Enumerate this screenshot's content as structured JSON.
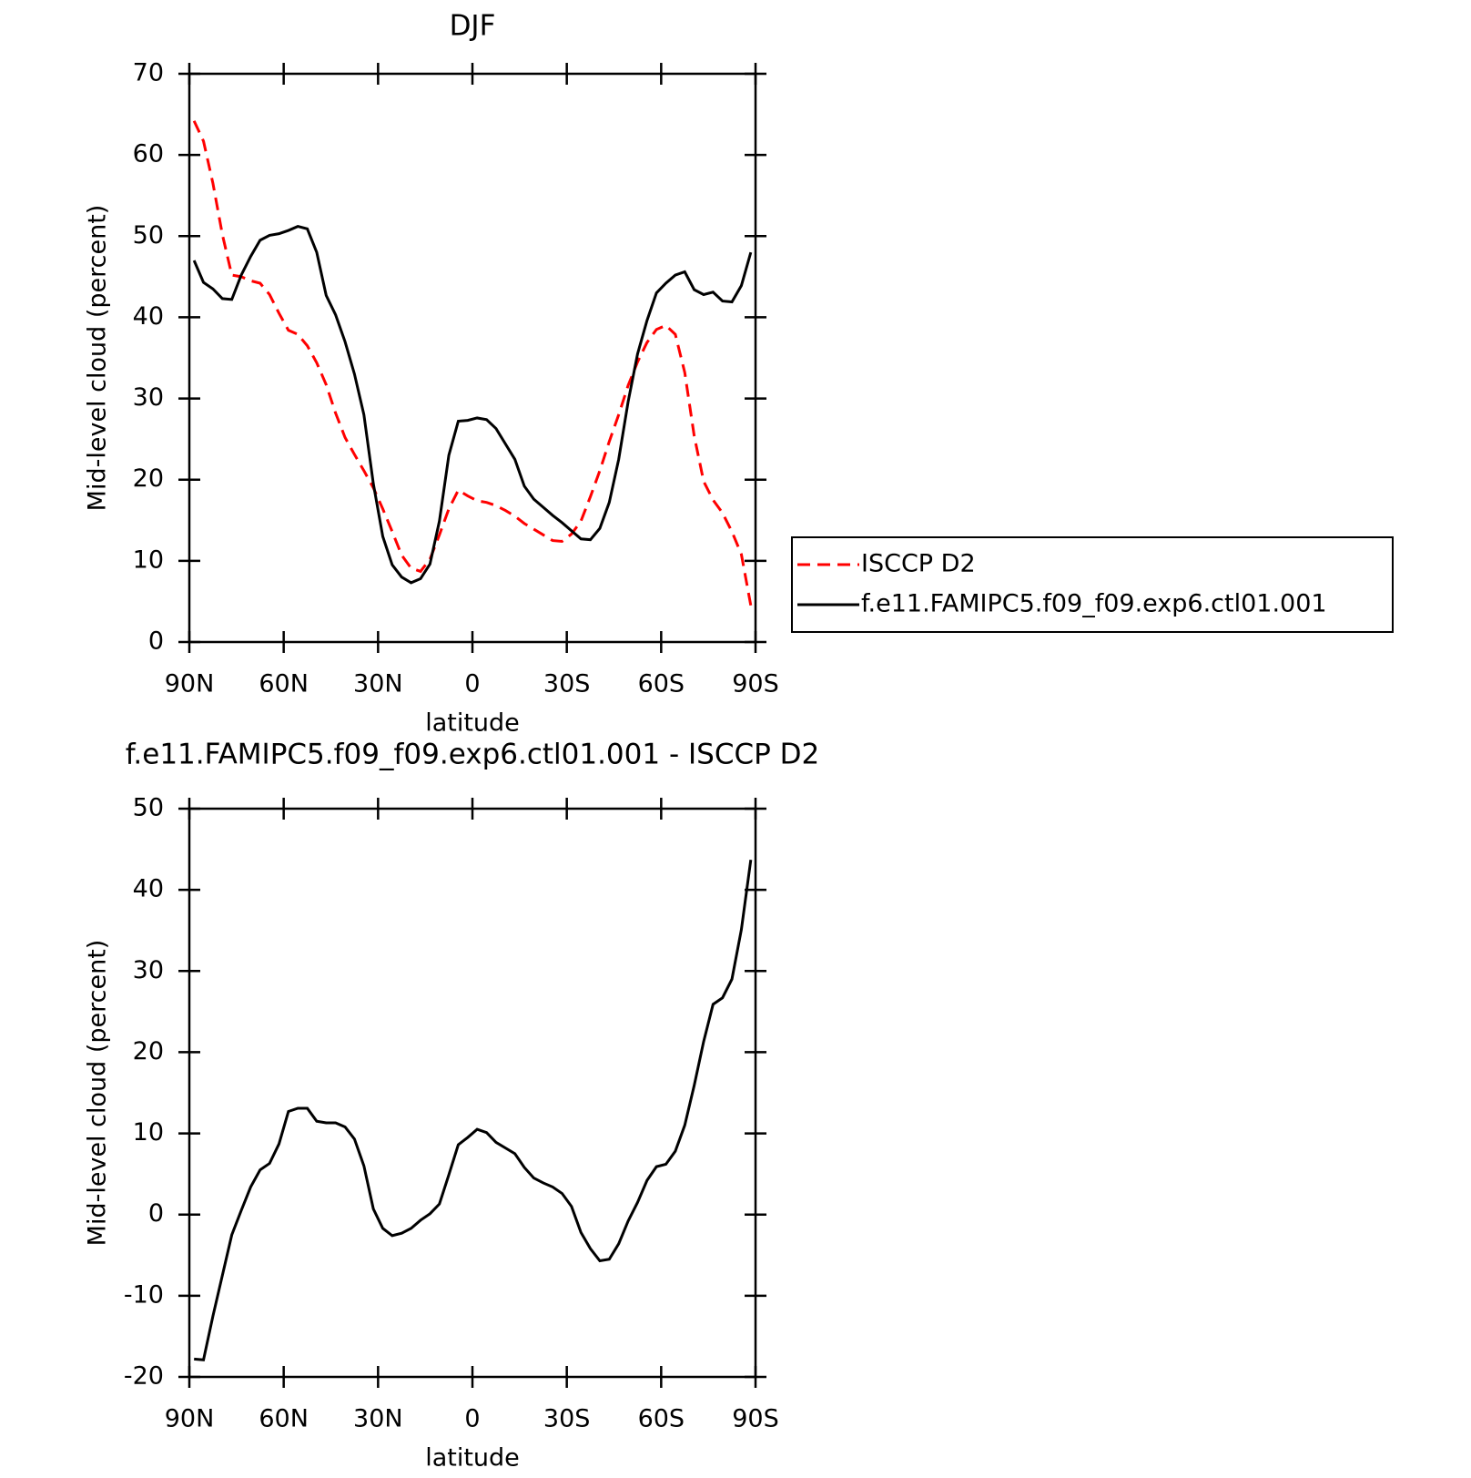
{
  "chart_data": [
    {
      "type": "line",
      "title": "DJF",
      "x_label": "latitude",
      "y_label": "Mid-level cloud (percent)",
      "x": [
        88.5,
        85.5,
        82.5,
        79.5,
        76.5,
        73.5,
        70.5,
        67.5,
        64.5,
        61.5,
        58.5,
        55.5,
        52.5,
        49.5,
        46.5,
        43.5,
        40.5,
        37.5,
        34.5,
        31.5,
        28.5,
        25.5,
        22.5,
        19.5,
        16.5,
        13.5,
        10.5,
        7.5,
        4.5,
        1.5,
        -1.5,
        -4.5,
        -7.5,
        -10.5,
        -13.5,
        -16.5,
        -19.5,
        -22.5,
        -25.5,
        -28.5,
        -31.5,
        -34.5,
        -37.5,
        -40.5,
        -43.5,
        -46.5,
        -49.5,
        -52.5,
        -55.5,
        -58.5,
        -61.5,
        -64.5,
        -67.5,
        -70.5,
        -73.5,
        -76.5,
        -79.5,
        -82.5,
        -85.5,
        -88.5
      ],
      "xlim": [
        90,
        -90
      ],
      "xticks": [
        {
          "value": 90,
          "label": "90N"
        },
        {
          "value": 60,
          "label": "60N"
        },
        {
          "value": 30,
          "label": "30N"
        },
        0,
        {
          "value": -30,
          "label": "30S"
        },
        {
          "value": -60,
          "label": "60S"
        },
        {
          "value": -90,
          "label": "90S"
        }
      ],
      "ylim": [
        0,
        70
      ],
      "yticks": [
        0,
        10,
        20,
        30,
        40,
        50,
        60,
        70
      ],
      "legend": "right",
      "series": [
        {
          "name": "ISCCP D2",
          "color": "#ff0000",
          "style": "dashed",
          "values": [
            64.2,
            61.7,
            56.5,
            50.2,
            45.2,
            45.0,
            44.5,
            44.2,
            42.8,
            40.5,
            38.4,
            37.9,
            36.5,
            34.4,
            31.7,
            28.2,
            25.2,
            23.1,
            21.1,
            19.0,
            16.4,
            13.6,
            10.7,
            9.1,
            8.7,
            10.2,
            13.2,
            16.4,
            18.7,
            18.0,
            17.4,
            17.2,
            16.8,
            16.2,
            15.5,
            14.6,
            13.9,
            13.2,
            12.5,
            12.4,
            13.3,
            14.9,
            17.9,
            21.1,
            24.7,
            28.0,
            31.6,
            34.5,
            36.9,
            38.5,
            39.0,
            37.9,
            33.2,
            25.4,
            19.8,
            17.5,
            15.9,
            13.6,
            10.8,
            4.5
          ]
        },
        {
          "name": "f.e11.FAMIPC5.f09_f09.exp6.ctl01.001",
          "color": "#000000",
          "style": "solid",
          "values": [
            47.0,
            44.3,
            43.5,
            42.3,
            42.2,
            45.2,
            47.5,
            49.5,
            50.1,
            50.3,
            50.7,
            51.2,
            50.9,
            48.0,
            42.7,
            40.3,
            37.0,
            33.0,
            28.0,
            19.5,
            13.0,
            9.5,
            8.0,
            7.3,
            7.8,
            9.6,
            14.9,
            23.0,
            27.2,
            27.3,
            27.6,
            27.4,
            26.3,
            24.4,
            22.5,
            19.2,
            17.6,
            16.6,
            15.6,
            14.7,
            13.7,
            12.7,
            12.6,
            14.0,
            17.2,
            22.5,
            29.6,
            35.5,
            39.6,
            43.0,
            44.2,
            45.2,
            45.6,
            43.4,
            42.8,
            43.1,
            42.0,
            41.9,
            43.9,
            48.0
          ]
        }
      ]
    },
    {
      "type": "line",
      "title": "f.e11.FAMIPC5.f09_f09.exp6.ctl01.001 - ISCCP D2",
      "x_label": "latitude",
      "y_label": "Mid-level cloud (percent)",
      "x": [
        88.5,
        85.5,
        82.5,
        79.5,
        76.5,
        73.5,
        70.5,
        67.5,
        64.5,
        61.5,
        58.5,
        55.5,
        52.5,
        49.5,
        46.5,
        43.5,
        40.5,
        37.5,
        34.5,
        31.5,
        28.5,
        25.5,
        22.5,
        19.5,
        16.5,
        13.5,
        10.5,
        7.5,
        4.5,
        1.5,
        -1.5,
        -4.5,
        -7.5,
        -10.5,
        -13.5,
        -16.5,
        -19.5,
        -22.5,
        -25.5,
        -28.5,
        -31.5,
        -34.5,
        -37.5,
        -40.5,
        -43.5,
        -46.5,
        -49.5,
        -52.5,
        -55.5,
        -58.5,
        -61.5,
        -64.5,
        -67.5,
        -70.5,
        -73.5,
        -76.5,
        -79.5,
        -82.5,
        -85.5,
        -88.5
      ],
      "xlim": [
        90,
        -90
      ],
      "xticks": [
        {
          "value": 90,
          "label": "90N"
        },
        {
          "value": 60,
          "label": "60N"
        },
        {
          "value": 30,
          "label": "30N"
        },
        0,
        {
          "value": -30,
          "label": "30S"
        },
        {
          "value": -60,
          "label": "60S"
        },
        {
          "value": -90,
          "label": "90S"
        }
      ],
      "ylim": [
        -20,
        50
      ],
      "yticks": [
        -20,
        -10,
        0,
        10,
        20,
        30,
        40,
        50
      ],
      "series": [
        {
          "color": "#000000",
          "style": "solid",
          "values": [
            -17.8,
            -17.9,
            -12.5,
            -7.5,
            -2.5,
            0.5,
            3.4,
            5.5,
            6.3,
            8.7,
            12.7,
            13.1,
            13.1,
            11.5,
            11.3,
            11.3,
            10.8,
            9.3,
            6.0,
            0.7,
            -1.7,
            -2.6,
            -2.3,
            -1.7,
            -0.7,
            0.1,
            1.3,
            4.9,
            8.6,
            9.5,
            10.5,
            10.1,
            8.9,
            8.2,
            7.5,
            5.8,
            4.5,
            3.9,
            3.4,
            2.6,
            1.0,
            -2.2,
            -4.2,
            -5.7,
            -5.5,
            -3.6,
            -0.8,
            1.5,
            4.2,
            5.9,
            6.2,
            7.8,
            11.0,
            15.9,
            21.3,
            25.9,
            26.7,
            29.0,
            35.1,
            43.7
          ]
        }
      ]
    }
  ]
}
